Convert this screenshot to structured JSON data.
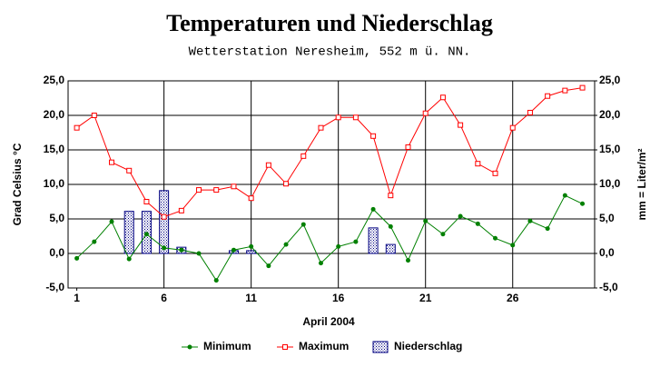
{
  "chart_data": {
    "type": "line-bar",
    "title": "Temperaturen und Niederschlag",
    "subtitle": "Wetterstation Neresheim, 552 m ü. NN.",
    "xlabel": "April 2004",
    "ylabel": "Grad Celsius °C",
    "y2label": "mm = Liter/m²",
    "x": [
      1,
      2,
      3,
      4,
      5,
      6,
      7,
      8,
      9,
      10,
      11,
      12,
      13,
      14,
      15,
      16,
      17,
      18,
      19,
      20,
      21,
      22,
      23,
      24,
      25,
      26,
      27,
      28,
      29,
      30
    ],
    "xlim": [
      0.5,
      30.7
    ],
    "xticks": [
      1,
      6,
      11,
      16,
      21,
      26
    ],
    "ylim": [
      -5,
      25
    ],
    "yticks": [
      {
        "value": 25,
        "label": "25,0"
      },
      {
        "value": 20,
        "label": "20,0"
      },
      {
        "value": 15,
        "label": "15,0"
      },
      {
        "value": 10,
        "label": "10,0"
      },
      {
        "value": 5,
        "label": "5,0"
      },
      {
        "value": 0,
        "label": "0,0"
      },
      {
        "value": -5,
        "label": "-5,0"
      }
    ],
    "y2lim": [
      -5,
      25
    ],
    "y2ticks": [
      {
        "value": 25,
        "label": "25,0"
      },
      {
        "value": 20,
        "label": "20,0"
      },
      {
        "value": 15,
        "label": "15,0"
      },
      {
        "value": 10,
        "label": "10,0"
      },
      {
        "value": 5,
        "label": "5,0"
      },
      {
        "value": 0,
        "label": "0,0"
      },
      {
        "value": -5,
        "label": "-5,0"
      }
    ],
    "grid": true,
    "legend": "bottom",
    "series": [
      {
        "name": "Minimum",
        "kind": "line",
        "marker": "dot",
        "color": "#008000",
        "values": [
          -0.7,
          1.7,
          4.6,
          -0.8,
          2.8,
          0.8,
          0.5,
          0.0,
          -3.9,
          0.5,
          1.0,
          -1.8,
          1.3,
          4.2,
          -1.4,
          1.0,
          1.7,
          6.4,
          3.9,
          -1.0,
          4.7,
          2.8,
          5.4,
          4.3,
          2.2,
          1.2,
          4.7,
          3.6,
          8.4,
          7.2
        ]
      },
      {
        "name": "Maximum",
        "kind": "line",
        "marker": "square",
        "color": "#ff0000",
        "values": [
          18.2,
          20.0,
          13.2,
          12.0,
          7.5,
          5.3,
          6.2,
          9.2,
          9.2,
          9.7,
          8.0,
          12.8,
          10.1,
          14.1,
          18.2,
          19.7,
          19.7,
          17.0,
          8.4,
          15.4,
          20.3,
          22.6,
          18.6,
          13.0,
          11.6,
          18.2,
          20.4,
          22.8,
          23.6,
          24.0
        ]
      },
      {
        "name": "Niederschlag",
        "kind": "bar",
        "axis": "y2",
        "color": "#000080",
        "values": [
          0,
          0,
          0,
          6.1,
          6.1,
          9.1,
          0.9,
          0,
          0,
          0.4,
          0.4,
          0,
          0,
          0,
          0,
          0,
          0,
          3.7,
          1.3,
          0,
          0,
          0,
          0,
          0,
          0,
          0,
          0,
          0,
          0,
          0
        ]
      }
    ]
  }
}
